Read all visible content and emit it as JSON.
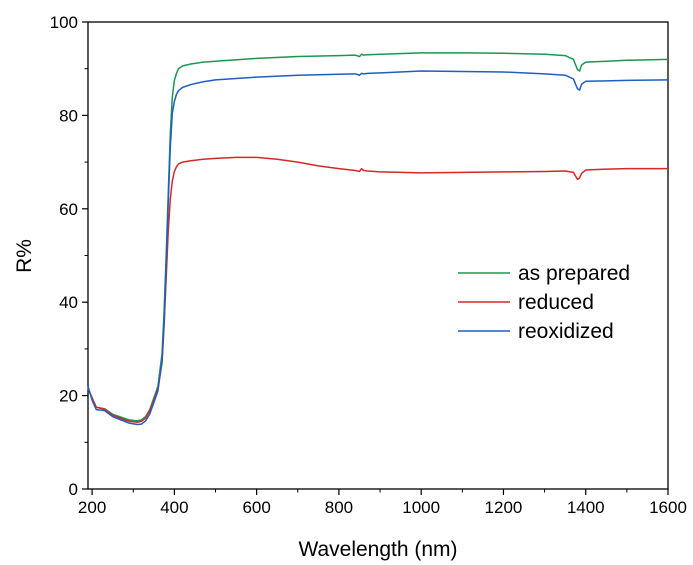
{
  "chart_data": {
    "type": "line",
    "title": "",
    "xlabel": "Wavelength (nm)",
    "ylabel": "R%",
    "xlim": [
      190,
      1600
    ],
    "ylim": [
      0,
      100
    ],
    "x_ticks": [
      200,
      400,
      600,
      800,
      1000,
      1200,
      1400,
      1600
    ],
    "y_ticks": [
      0,
      20,
      40,
      60,
      80,
      100
    ],
    "x_tick_labels": [
      "200",
      "400",
      "600",
      "800",
      "1000",
      "1200",
      "1400",
      "1600"
    ],
    "y_tick_labels": [
      "0",
      "20",
      "40",
      "60",
      "80",
      "100"
    ],
    "grid": false,
    "legend_position": "center-right",
    "series": [
      {
        "name": "as prepared",
        "color": "#1a9850",
        "x": [
          190,
          200,
          210,
          230,
          250,
          270,
          290,
          310,
          320,
          330,
          340,
          350,
          360,
          370,
          375,
          380,
          385,
          390,
          395,
          400,
          405,
          410,
          420,
          440,
          470,
          500,
          600,
          700,
          800,
          840,
          850,
          855,
          860,
          870,
          900,
          1000,
          1100,
          1200,
          1300,
          1350,
          1370,
          1380,
          1385,
          1390,
          1400,
          1450,
          1500,
          1600
        ],
        "y": [
          21.5,
          19.5,
          17.5,
          17.2,
          16.0,
          15.4,
          14.8,
          14.6,
          14.8,
          15.5,
          17.0,
          19.5,
          22.0,
          29.0,
          38.0,
          50.0,
          63.0,
          76.0,
          84.0,
          87.5,
          89.0,
          90.0,
          90.6,
          91.0,
          91.4,
          91.6,
          92.2,
          92.6,
          92.8,
          92.9,
          92.6,
          93.1,
          92.9,
          93.0,
          93.1,
          93.4,
          93.4,
          93.3,
          93.1,
          92.8,
          92.0,
          89.8,
          89.5,
          90.8,
          91.4,
          91.6,
          91.8,
          92.0
        ]
      },
      {
        "name": "reduced",
        "color": "#d62728",
        "x": [
          190,
          200,
          210,
          230,
          250,
          270,
          290,
          310,
          320,
          330,
          340,
          350,
          360,
          370,
          375,
          380,
          385,
          390,
          395,
          400,
          405,
          410,
          420,
          440,
          470,
          500,
          550,
          600,
          650,
          700,
          750,
          800,
          840,
          850,
          855,
          860,
          870,
          900,
          1000,
          1100,
          1200,
          1300,
          1350,
          1370,
          1380,
          1385,
          1390,
          1400,
          1450,
          1500,
          1600
        ],
        "y": [
          21.5,
          19.5,
          17.5,
          17.1,
          15.8,
          15.1,
          14.5,
          14.3,
          14.5,
          15.2,
          16.7,
          19.0,
          21.5,
          27.0,
          35.0,
          45.0,
          55.0,
          62.0,
          66.0,
          68.0,
          69.0,
          69.6,
          70.0,
          70.3,
          70.6,
          70.8,
          71.0,
          71.0,
          70.6,
          70.0,
          69.2,
          68.6,
          68.2,
          68.0,
          68.6,
          68.2,
          68.1,
          67.9,
          67.7,
          67.8,
          67.9,
          68.0,
          68.1,
          67.8,
          66.3,
          66.6,
          67.6,
          68.3,
          68.5,
          68.6,
          68.6
        ]
      },
      {
        "name": "reoxidized",
        "color": "#1f5fbf",
        "x": [
          190,
          200,
          210,
          230,
          250,
          270,
          290,
          310,
          320,
          330,
          340,
          350,
          360,
          370,
          375,
          380,
          385,
          390,
          395,
          400,
          405,
          410,
          420,
          440,
          470,
          500,
          600,
          700,
          800,
          840,
          850,
          855,
          860,
          870,
          900,
          1000,
          1100,
          1200,
          1300,
          1350,
          1370,
          1380,
          1385,
          1390,
          1400,
          1450,
          1500,
          1600
        ],
        "y": [
          22.0,
          19.0,
          17.0,
          16.8,
          15.5,
          14.8,
          14.1,
          13.8,
          13.9,
          14.6,
          16.0,
          18.5,
          21.0,
          27.5,
          36.0,
          48.0,
          61.0,
          73.0,
          80.5,
          83.0,
          84.5,
          85.3,
          86.0,
          86.6,
          87.2,
          87.6,
          88.2,
          88.6,
          88.8,
          88.9,
          88.6,
          89.0,
          88.9,
          89.0,
          89.1,
          89.5,
          89.4,
          89.3,
          88.9,
          88.6,
          87.8,
          85.7,
          85.4,
          86.7,
          87.3,
          87.4,
          87.5,
          87.6
        ]
      }
    ]
  }
}
